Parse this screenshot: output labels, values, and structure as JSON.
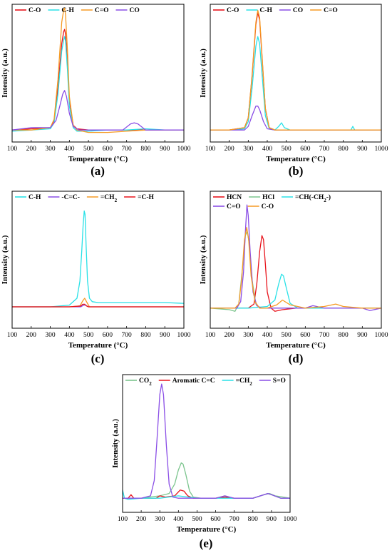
{
  "figure": {
    "panels": [
      {
        "label": "(a)"
      },
      {
        "label": "(b)"
      },
      {
        "label": "(c)"
      },
      {
        "label": "(d)"
      },
      {
        "label": "(e)"
      }
    ]
  },
  "chart_data": [
    {
      "type": "line",
      "panel": "(a)",
      "xlabel": "Temperature (°C)",
      "ylabel": "Intensity (a.u.)",
      "xlim": [
        100,
        1000
      ],
      "ylim": [
        -0.1,
        1.05
      ],
      "xticks": [
        100,
        200,
        300,
        400,
        500,
        600,
        700,
        800,
        900,
        1000
      ],
      "legend": {
        "placement": "top-left",
        "rows": [
          [
            0,
            1,
            2,
            3
          ]
        ]
      },
      "series": [
        {
          "name": "C-O",
          "color": "#e8141c",
          "x": [
            100,
            200,
            300,
            320,
            340,
            360,
            370,
            375,
            380,
            390,
            400,
            420,
            440,
            500,
            600,
            700,
            800,
            900,
            1000
          ],
          "y": [
            0.0,
            0.01,
            0.02,
            0.08,
            0.35,
            0.72,
            0.82,
            0.84,
            0.8,
            0.55,
            0.25,
            0.04,
            0.01,
            0.0,
            0.0,
            0.0,
            0.0,
            0.0,
            0.0
          ]
        },
        {
          "name": "C-H",
          "color": "#29e1e7",
          "x": [
            100,
            200,
            300,
            320,
            340,
            360,
            370,
            375,
            380,
            390,
            400,
            420,
            440,
            500,
            600,
            700,
            800,
            900,
            1000
          ],
          "y": [
            -0.01,
            0.0,
            0.01,
            0.06,
            0.3,
            0.66,
            0.75,
            0.78,
            0.74,
            0.5,
            0.2,
            0.02,
            -0.01,
            -0.01,
            0.0,
            0.0,
            0.01,
            0.0,
            0.0
          ]
        },
        {
          "name": "C=O",
          "color": "#f59a23",
          "x": [
            100,
            200,
            300,
            320,
            340,
            360,
            370,
            375,
            380,
            390,
            400,
            420,
            440,
            500,
            600,
            700,
            800,
            900,
            1000
          ],
          "y": [
            0.0,
            0.0,
            0.02,
            0.09,
            0.42,
            0.9,
            1.0,
            1.02,
            0.96,
            0.66,
            0.28,
            0.04,
            0.0,
            -0.02,
            -0.02,
            -0.01,
            0.0,
            0.0,
            0.0
          ]
        },
        {
          "name": "CO",
          "color": "#8a4ee6",
          "x": [
            100,
            200,
            300,
            330,
            350,
            365,
            375,
            385,
            400,
            420,
            450,
            500,
            600,
            680,
            720,
            740,
            760,
            800,
            900,
            1000
          ],
          "y": [
            0.0,
            0.02,
            0.02,
            0.08,
            0.2,
            0.3,
            0.33,
            0.28,
            0.14,
            0.03,
            0.0,
            0.0,
            0.0,
            0.0,
            0.05,
            0.06,
            0.05,
            0.0,
            0.0,
            0.0
          ]
        }
      ]
    },
    {
      "type": "line",
      "panel": "(b)",
      "xlabel": "Temperature (°C)",
      "ylabel": "Intensity (a.u.)",
      "xlim": [
        100,
        1000
      ],
      "ylim": [
        -0.1,
        1.05
      ],
      "xticks": [
        100,
        200,
        300,
        400,
        500,
        600,
        700,
        800,
        900,
        1000
      ],
      "legend": {
        "placement": "top-left",
        "rows": [
          [
            0,
            1,
            2,
            3
          ]
        ]
      },
      "series": [
        {
          "name": "C-O",
          "color": "#e8141c",
          "x": [
            100,
            200,
            280,
            300,
            320,
            340,
            350,
            360,
            375,
            390,
            410,
            440,
            500,
            600,
            700,
            800,
            900,
            1000
          ],
          "y": [
            0.0,
            0.0,
            0.02,
            0.1,
            0.45,
            0.88,
            0.98,
            0.92,
            0.55,
            0.18,
            0.02,
            0.0,
            0.0,
            0.0,
            0.0,
            0.0,
            0.0,
            0.0
          ]
        },
        {
          "name": "C-H",
          "color": "#29e1e7",
          "x": [
            100,
            200,
            280,
            300,
            320,
            340,
            350,
            360,
            375,
            390,
            410,
            440,
            460,
            475,
            490,
            520,
            600,
            700,
            840,
            850,
            860,
            1000
          ],
          "y": [
            0.0,
            0.0,
            0.01,
            0.07,
            0.35,
            0.7,
            0.78,
            0.72,
            0.42,
            0.12,
            0.01,
            0.0,
            0.03,
            0.06,
            0.02,
            0.0,
            0.0,
            0.0,
            0.0,
            0.03,
            0.0,
            0.0
          ]
        },
        {
          "name": "CO",
          "color": "#8a4ee6",
          "x": [
            100,
            200,
            280,
            300,
            320,
            340,
            350,
            360,
            380,
            400,
            440,
            500,
            600,
            700,
            800,
            900,
            1000
          ],
          "y": [
            0.0,
            0.0,
            0.0,
            0.03,
            0.12,
            0.2,
            0.2,
            0.17,
            0.07,
            0.01,
            0.0,
            0.0,
            0.0,
            0.0,
            0.0,
            0.0,
            0.0
          ]
        },
        {
          "name": "C=O",
          "color": "#f59a23",
          "x": [
            100,
            200,
            280,
            300,
            320,
            340,
            350,
            360,
            375,
            390,
            410,
            440,
            500,
            600,
            700,
            800,
            900,
            1000
          ],
          "y": [
            0.0,
            0.0,
            0.02,
            0.1,
            0.46,
            0.9,
            1.0,
            0.94,
            0.56,
            0.18,
            0.02,
            0.0,
            0.0,
            0.0,
            0.0,
            0.0,
            0.0,
            0.0
          ]
        }
      ]
    },
    {
      "type": "line",
      "panel": "(c)",
      "xlabel": "Temperature (°C)",
      "ylabel": "Intensity (a.u.)",
      "xlim": [
        100,
        1000
      ],
      "ylim": [
        -0.25,
        1.35
      ],
      "xticks": [
        100,
        200,
        300,
        400,
        500,
        600,
        700,
        800,
        900,
        1000
      ],
      "legend": {
        "placement": "top-left",
        "rows": [
          [
            0,
            1,
            2,
            3
          ]
        ]
      },
      "series": [
        {
          "name": "C-H",
          "color": "#29e1e7",
          "x": [
            100,
            300,
            400,
            440,
            455,
            465,
            472,
            478,
            482,
            488,
            495,
            505,
            520,
            550,
            600,
            700,
            800,
            900,
            1000
          ],
          "y": [
            0.0,
            0.0,
            0.02,
            0.1,
            0.3,
            0.65,
            0.95,
            1.12,
            1.08,
            0.7,
            0.3,
            0.1,
            0.06,
            0.05,
            0.05,
            0.05,
            0.05,
            0.05,
            0.04
          ]
        },
        {
          "name": "-C=C-",
          "color": "#8a4ee6",
          "x": [
            100,
            300,
            400,
            460,
            475,
            485,
            500,
            600,
            800,
            1000
          ],
          "y": [
            0.0,
            0.0,
            0.0,
            0.0,
            0.02,
            0.02,
            0.0,
            0.0,
            0.0,
            0.0
          ]
        },
        {
          "name": "=CH2",
          "color": "#f59a23",
          "x": [
            100,
            300,
            400,
            455,
            470,
            480,
            490,
            505,
            600,
            800,
            1000
          ],
          "y": [
            0.0,
            0.0,
            0.0,
            0.01,
            0.07,
            0.1,
            0.06,
            0.0,
            0.0,
            0.0,
            0.0
          ]
        },
        {
          "name": "=C-H",
          "color": "#e8141c",
          "x": [
            100,
            200,
            300,
            400,
            460,
            470,
            480,
            490,
            500,
            600,
            700,
            800,
            900,
            1000
          ],
          "y": [
            0.0,
            0.0,
            0.0,
            0.0,
            0.01,
            0.03,
            0.03,
            0.01,
            0.0,
            0.0,
            0.0,
            0.0,
            0.0,
            0.0
          ]
        }
      ]
    },
    {
      "type": "line",
      "panel": "(d)",
      "xlabel": "Temperature (°C)",
      "ylabel": "Intensity (a.u.)",
      "xlim": [
        100,
        1000
      ],
      "ylim": [
        -0.25,
        1.45
      ],
      "xticks": [
        100,
        200,
        300,
        400,
        500,
        600,
        700,
        800,
        900,
        1000
      ],
      "legend": {
        "placement": "top-left",
        "rows": [
          [
            0,
            1,
            2
          ],
          [
            3,
            4
          ]
        ]
      },
      "series": [
        {
          "name": "HCN",
          "color": "#e8141c",
          "x": [
            100,
            200,
            300,
            330,
            345,
            360,
            372,
            380,
            390,
            400,
            420,
            440,
            480,
            550,
            700,
            900,
            1000
          ],
          "y": [
            0.0,
            0.0,
            0.0,
            0.05,
            0.3,
            0.7,
            0.9,
            0.85,
            0.55,
            0.2,
            0.0,
            -0.04,
            -0.02,
            0.0,
            0.0,
            0.0,
            0.0
          ]
        },
        {
          "name": "HCl",
          "color": "#7cc58e",
          "x": [
            100,
            200,
            230,
            250,
            270,
            285,
            295,
            305,
            320,
            340,
            360,
            400,
            500,
            700,
            900,
            1000
          ],
          "y": [
            0.0,
            -0.02,
            -0.04,
            0.05,
            0.5,
            0.9,
            0.95,
            0.8,
            0.35,
            0.05,
            0.0,
            0.0,
            0.0,
            0.0,
            0.0,
            0.0
          ]
        },
        {
          "name": "=CH(-CH2-)",
          "color": "#29e1e7",
          "x": [
            100,
            300,
            400,
            440,
            460,
            475,
            485,
            500,
            520,
            560,
            600,
            700,
            800,
            900,
            1000
          ],
          "y": [
            0.0,
            0.0,
            0.02,
            0.1,
            0.3,
            0.42,
            0.4,
            0.25,
            0.06,
            0.0,
            0.0,
            0.0,
            0.0,
            0.0,
            0.0
          ]
        },
        {
          "name": "C=O",
          "color": "#8a4ee6",
          "x": [
            100,
            200,
            240,
            260,
            275,
            285,
            293,
            300,
            310,
            325,
            345,
            370,
            400,
            500,
            600,
            640,
            700,
            800,
            900,
            940,
            1000
          ],
          "y": [
            0.0,
            0.0,
            0.0,
            0.08,
            0.45,
            0.95,
            1.28,
            1.15,
            0.7,
            0.2,
            0.03,
            0.0,
            0.0,
            0.0,
            0.0,
            0.03,
            0.0,
            0.0,
            0.0,
            -0.03,
            0.0
          ]
        },
        {
          "name": "C-O",
          "color": "#f59a23",
          "x": [
            100,
            200,
            230,
            250,
            265,
            280,
            292,
            302,
            315,
            335,
            360,
            400,
            450,
            480,
            520,
            600,
            700,
            760,
            800,
            900,
            1000
          ],
          "y": [
            0.0,
            0.0,
            0.0,
            0.05,
            0.35,
            0.85,
            1.0,
            0.85,
            0.4,
            0.08,
            0.0,
            0.0,
            0.04,
            0.1,
            0.04,
            0.0,
            0.02,
            0.05,
            0.02,
            0.0,
            0.0
          ]
        }
      ]
    },
    {
      "type": "line",
      "panel": "(e)",
      "xlabel": "Temperature (°C)",
      "ylabel": "Intensity (a.u.)",
      "xlim": [
        100,
        1000
      ],
      "ylim": [
        -0.12,
        1.05
      ],
      "xticks": [
        100,
        200,
        300,
        400,
        500,
        600,
        700,
        800,
        900,
        1000
      ],
      "legend": {
        "placement": "top-left",
        "rows": [
          [
            0,
            1,
            2,
            3
          ]
        ]
      },
      "series": [
        {
          "name": "CO2",
          "color": "#7cc58e",
          "x": [
            100,
            200,
            300,
            350,
            380,
            400,
            415,
            425,
            440,
            460,
            480,
            520,
            600,
            650,
            680,
            720,
            800,
            860,
            890,
            920,
            1000
          ],
          "y": [
            0.0,
            0.0,
            0.02,
            0.04,
            0.12,
            0.24,
            0.3,
            0.29,
            0.2,
            0.06,
            0.01,
            0.0,
            0.0,
            0.02,
            0.0,
            0.0,
            0.0,
            0.03,
            0.04,
            0.02,
            0.0
          ]
        },
        {
          "name": "Aromatic C=C",
          "color": "#e8141c",
          "x": [
            100,
            130,
            145,
            160,
            200,
            280,
            300,
            330,
            380,
            410,
            430,
            450,
            480,
            600,
            650,
            700,
            800,
            880,
            900,
            950,
            1000
          ],
          "y": [
            0.0,
            0.0,
            0.03,
            0.0,
            0.0,
            0.0,
            0.02,
            0.01,
            0.02,
            0.07,
            0.06,
            0.02,
            0.0,
            0.0,
            0.01,
            0.0,
            0.0,
            0.04,
            0.03,
            0.0,
            0.0
          ]
        },
        {
          "name": "=CH2",
          "color": "#29e1e7",
          "x": [
            100,
            110,
            130,
            200,
            300,
            400,
            500,
            600,
            700,
            800,
            880,
            900,
            950,
            1000
          ],
          "y": [
            0.07,
            0.0,
            -0.01,
            0.0,
            0.0,
            0.02,
            0.0,
            0.0,
            0.0,
            0.0,
            0.04,
            0.03,
            0.0,
            0.0
          ]
        },
        {
          "name": "S=O",
          "color": "#8a4ee6",
          "x": [
            100,
            200,
            250,
            270,
            285,
            300,
            310,
            320,
            335,
            350,
            370,
            400,
            500,
            600,
            650,
            700,
            800,
            880,
            900,
            950,
            1000
          ],
          "y": [
            0.0,
            0.0,
            0.02,
            0.15,
            0.5,
            0.88,
            0.97,
            0.88,
            0.45,
            0.12,
            0.01,
            0.0,
            0.0,
            0.0,
            0.02,
            0.0,
            0.0,
            0.04,
            0.03,
            0.0,
            0.0
          ]
        }
      ]
    }
  ]
}
